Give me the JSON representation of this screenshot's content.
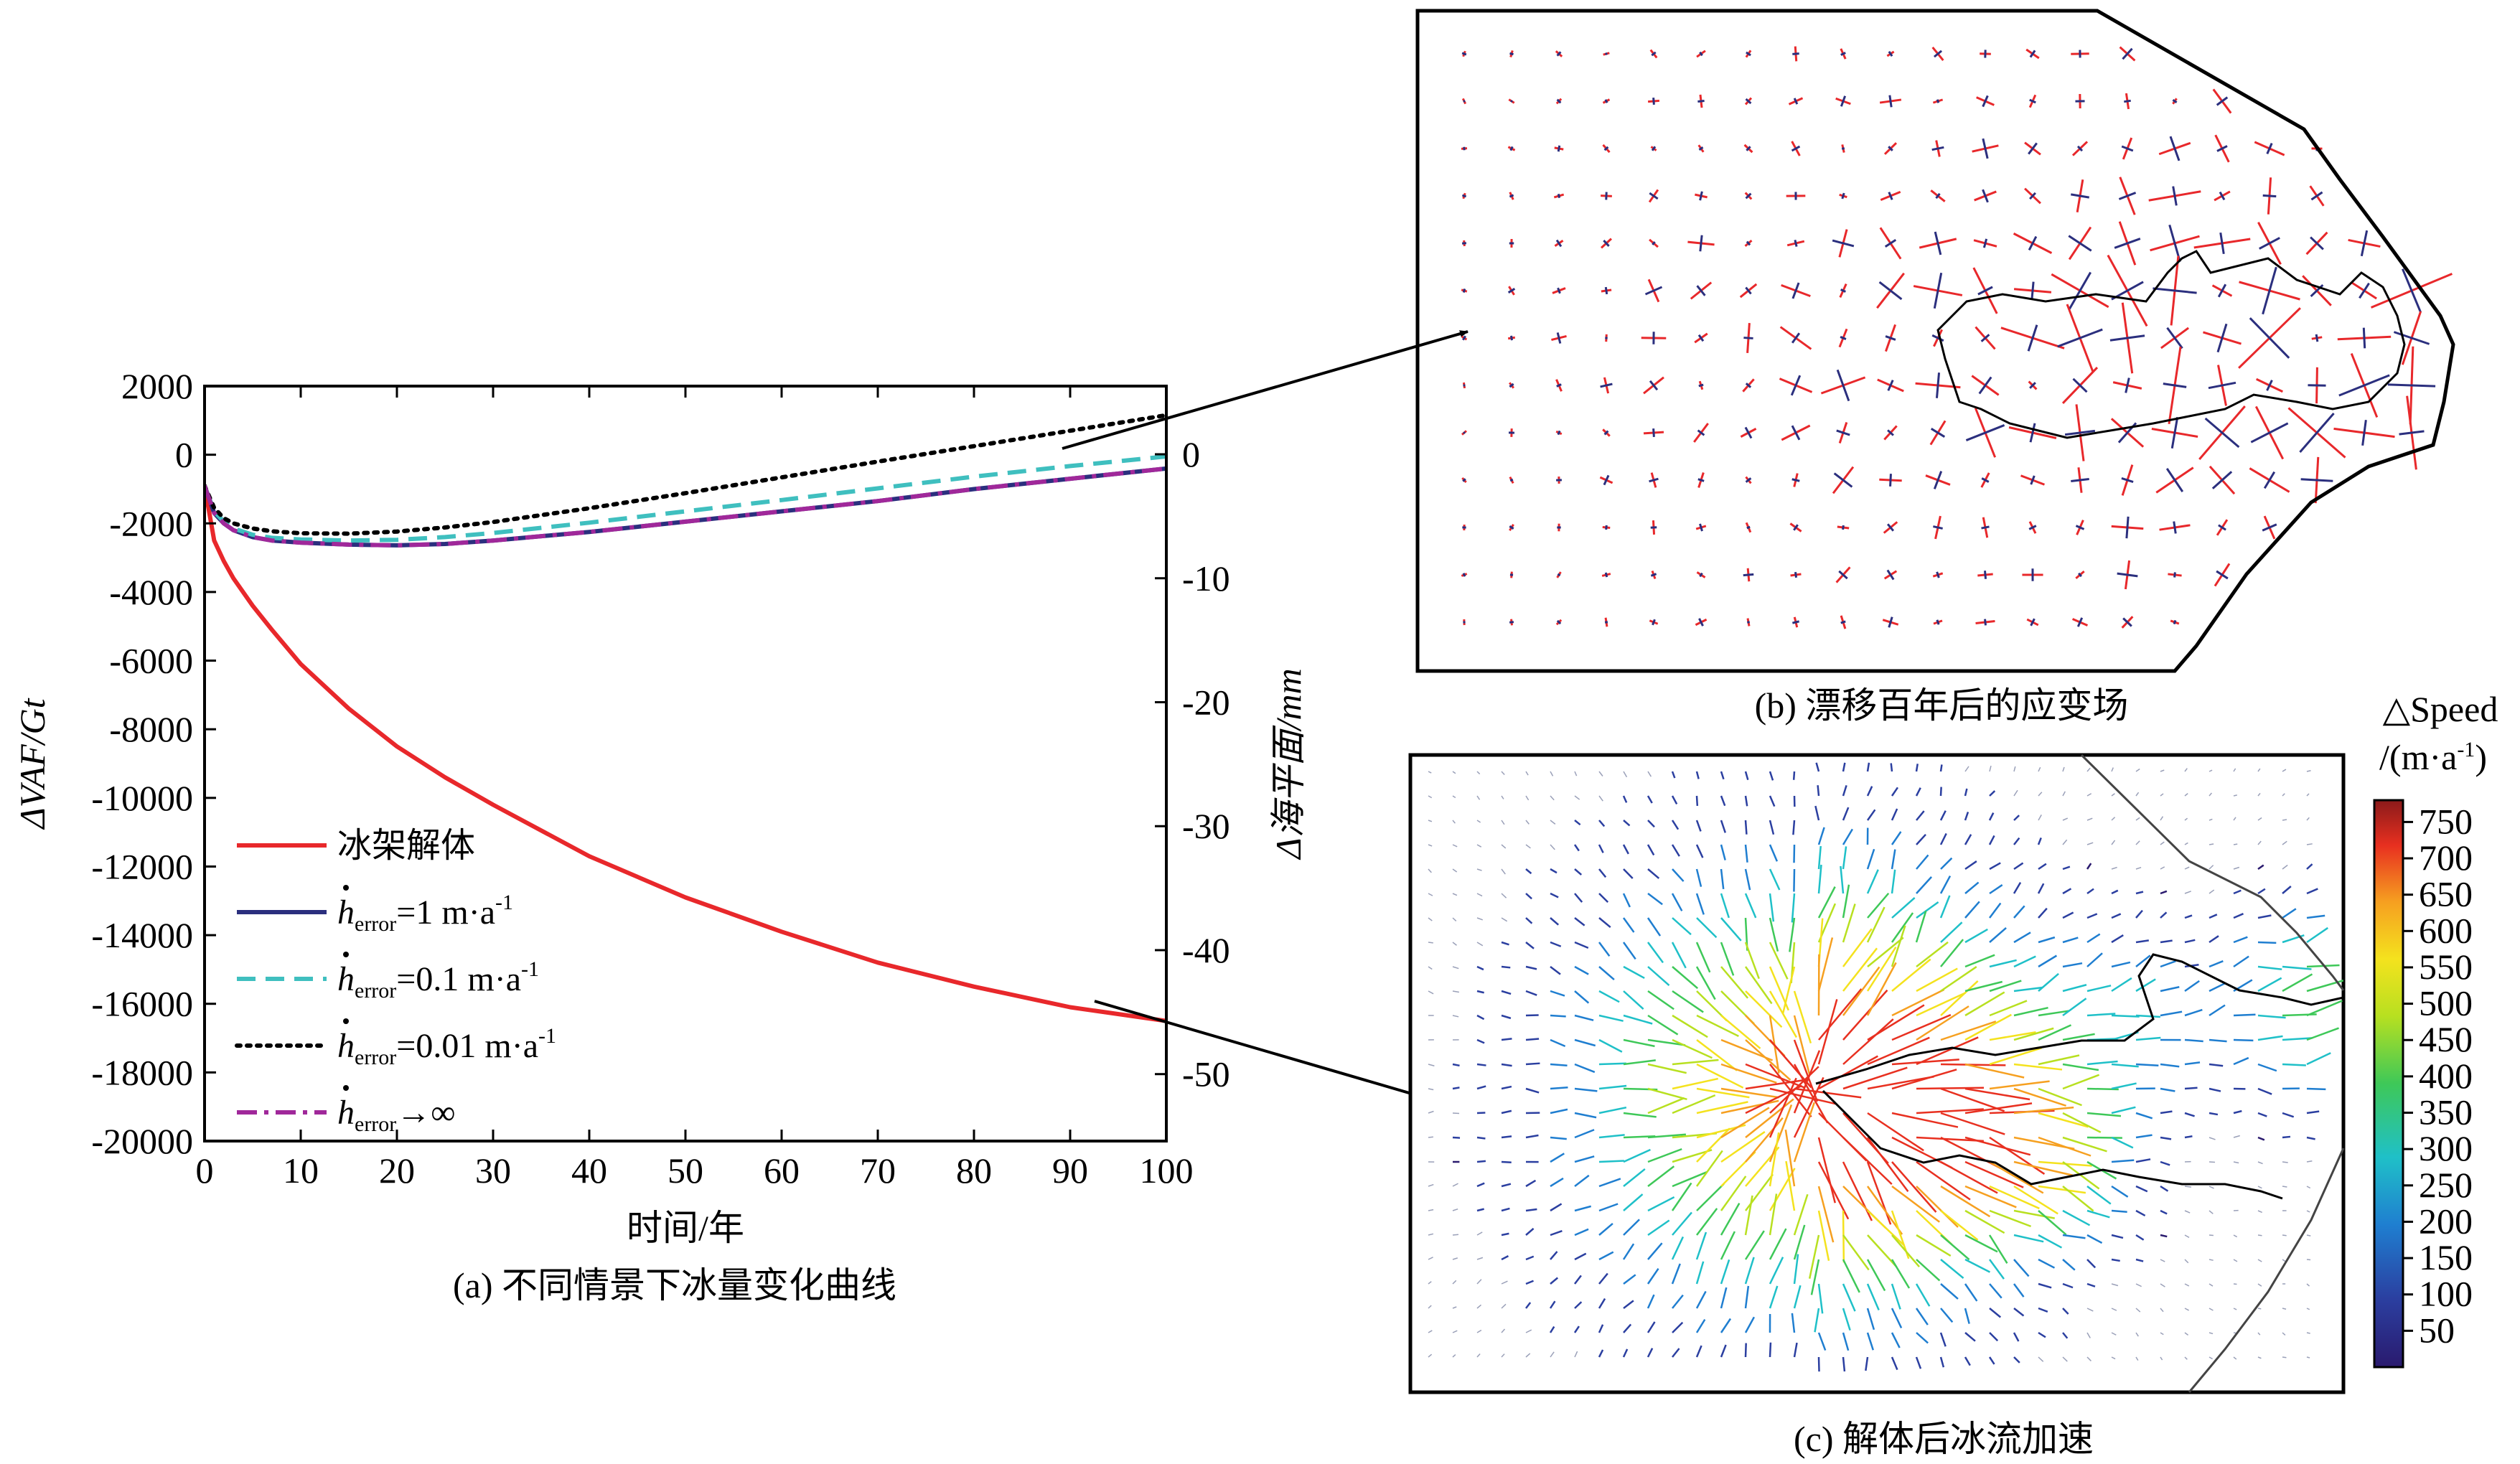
{
  "chart_data": [
    {
      "type": "line",
      "caption": "(a) 不同情景下冰量变化曲线",
      "xlabel": "时间/年",
      "ylabel": "ΔVAF/Gt",
      "y2label": "Δ海平面/mm",
      "xlim": [
        0,
        100
      ],
      "ylim": [
        -20000,
        2000
      ],
      "y2lim": [
        -55.4,
        5.5
      ],
      "xticks": [
        "0",
        "10",
        "20",
        "30",
        "40",
        "50",
        "60",
        "70",
        "80",
        "90",
        "100"
      ],
      "yticks": [
        "2000",
        "0",
        "-2000",
        "-4000",
        "-6000",
        "-8000",
        "-10000",
        "-12000",
        "-14000",
        "-16000",
        "-18000",
        "-20000"
      ],
      "y2ticks": [
        "0",
        "-10",
        "-20",
        "-30",
        "-40",
        "-50"
      ],
      "legend_position": "lower-left",
      "x": [
        0,
        1,
        2,
        3,
        5,
        7,
        10,
        15,
        20,
        25,
        30,
        40,
        50,
        60,
        70,
        80,
        90,
        100
      ],
      "series": [
        {
          "name": "冰架解体",
          "color": "#e8282b",
          "style": "solid",
          "values": [
            -900,
            -2500,
            -3100,
            -3600,
            -4400,
            -5100,
            -6100,
            -7400,
            -8500,
            -9400,
            -10200,
            -11700,
            -12900,
            -13900,
            -14800,
            -15500,
            -16100,
            -16500
          ]
        },
        {
          "name_prefix": "h",
          "name_sub": "error",
          "name_suffix": "=1 m·a",
          "name_sup": "-1",
          "color": "#2b2f7e",
          "style": "solid",
          "values": [
            -900,
            -1700,
            -2000,
            -2200,
            -2400,
            -2500,
            -2560,
            -2620,
            -2640,
            -2600,
            -2500,
            -2250,
            -1950,
            -1650,
            -1350,
            -1000,
            -700,
            -400
          ]
        },
        {
          "name_prefix": "h",
          "name_sub": "error",
          "name_suffix": "=0.1 m·a",
          "name_sup": "-1",
          "color": "#3fbfbf",
          "style": "dashed",
          "values": [
            -900,
            -1650,
            -1950,
            -2150,
            -2330,
            -2420,
            -2470,
            -2500,
            -2480,
            -2400,
            -2280,
            -1980,
            -1650,
            -1320,
            -980,
            -640,
            -330,
            -50
          ]
        },
        {
          "name_prefix": "h",
          "name_sub": "error",
          "name_suffix": "=0.01 m·a",
          "name_sup": "-1",
          "color": "#000000",
          "style": "dotted",
          "values": [
            -900,
            -1550,
            -1850,
            -2000,
            -2150,
            -2230,
            -2290,
            -2300,
            -2240,
            -2120,
            -1960,
            -1560,
            -1120,
            -660,
            -200,
            250,
            700,
            1150
          ]
        },
        {
          "name_prefix": "h",
          "name_sub": "error",
          "name_suffix": "→∞",
          "name_sup": "",
          "color": "#a0289a",
          "style": "dashdot",
          "values": [
            -900,
            -1700,
            -2000,
            -2200,
            -2400,
            -2500,
            -2560,
            -2620,
            -2640,
            -2600,
            -2500,
            -2250,
            -1950,
            -1650,
            -1350,
            -1000,
            -700,
            -400
          ]
        }
      ]
    },
    {
      "type": "heatmap",
      "caption": "(b) 漂移百年后的应变场",
      "vector_colors": [
        "#e8282b",
        "#2b2f7e"
      ]
    },
    {
      "type": "heatmap",
      "caption": "(c) 解体后冰流加速",
      "colorbar_title": "△Speed",
      "colorbar_unit": "/(m·a",
      "colorbar_unit_sup": "-1",
      "colorbar_unit_close": ")",
      "colorbar_ticks": [
        "750",
        "700",
        "650",
        "600",
        "550",
        "500",
        "450",
        "400",
        "350",
        "300",
        "250",
        "200",
        "150",
        "100",
        "50"
      ],
      "colorbar_range": [
        0,
        780
      ],
      "colormap": [
        "#2a1a6e",
        "#2b3fa0",
        "#1f7ed0",
        "#1fc0c8",
        "#3ec858",
        "#b8e020",
        "#f4e21e",
        "#f6a020",
        "#e83020",
        "#8a1a1a"
      ]
    }
  ]
}
